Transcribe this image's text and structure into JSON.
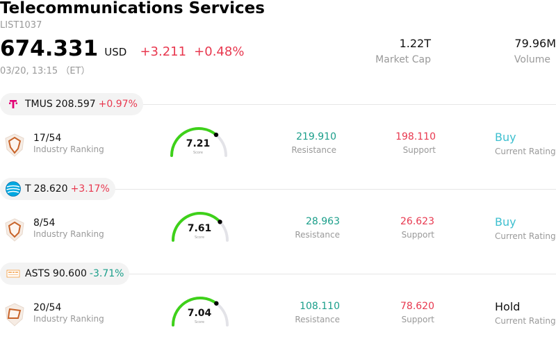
{
  "header": {
    "title": "Telecommunications Services",
    "code": "LIST1037",
    "price": "674.331",
    "currency": "USD",
    "change": "+3.211",
    "change_pct": "+0.48%",
    "timestamp": "03/20, 13:15 （ET）",
    "market_cap_value": "1.22T",
    "market_cap_label": "Market Cap",
    "volume_value": "79.96M",
    "volume_label": "Volume"
  },
  "colors": {
    "up": "#e8384f",
    "down": "#1a9e8a",
    "buy": "#3dbfcf",
    "gauge": "#3ed11a"
  },
  "stocks": [
    {
      "ticker": "TMUS",
      "price": "208.597",
      "change_pct": "+0.97%",
      "logo": "t-mobile-logo",
      "rank": "17/54",
      "rank_label": "Industry Ranking",
      "score": "7.21",
      "score_label": "Score",
      "score_value": 7.21,
      "resistance": "219.910",
      "resistance_label": "Resistance",
      "support": "198.110",
      "support_label": "Support",
      "rating": "Buy",
      "rating_label": "Current Rating"
    },
    {
      "ticker": "T",
      "price": "28.620",
      "change_pct": "+3.17%",
      "logo": "att-logo",
      "rank": "8/54",
      "rank_label": "Industry Ranking",
      "score": "7.61",
      "score_label": "Score",
      "score_value": 7.61,
      "resistance": "28.963",
      "resistance_label": "Resistance",
      "support": "26.623",
      "support_label": "Support",
      "rating": "Buy",
      "rating_label": "Current Rating"
    },
    {
      "ticker": "ASTS",
      "price": "90.600",
      "change_pct": "-3.71%",
      "logo": "ast-spacemobile-logo",
      "rank": "20/54",
      "rank_label": "Industry Ranking",
      "score": "7.04",
      "score_label": "Score",
      "score_value": 7.04,
      "resistance": "108.110",
      "resistance_label": "Resistance",
      "support": "78.620",
      "support_label": "Support",
      "rating": "Hold",
      "rating_label": "Current Rating"
    }
  ]
}
